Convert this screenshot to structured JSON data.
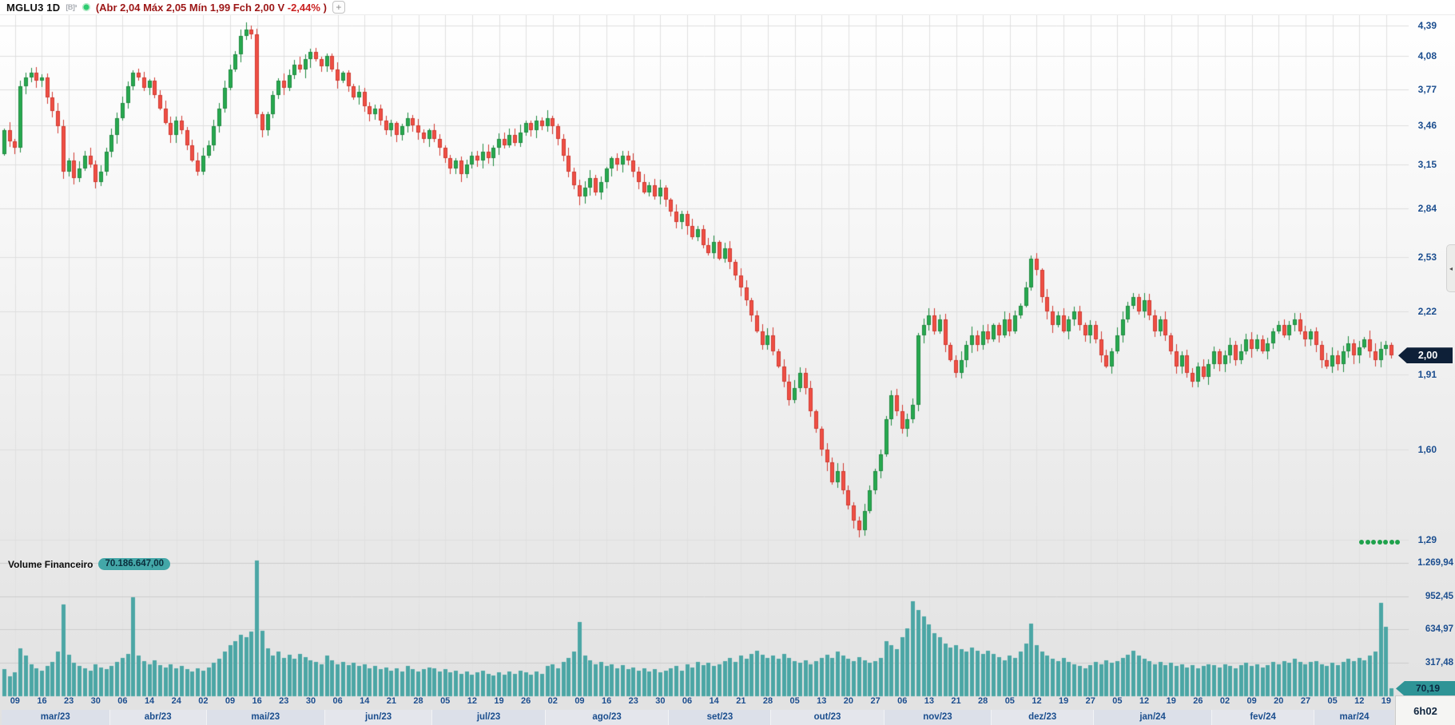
{
  "header": {
    "symbol_timeframe": "MGLU3 1D",
    "symbol": "MGLU3",
    "timeframe": "1D",
    "icons": {
      "exchange": "[B]³",
      "status": "green-connection-dot",
      "add": "+",
      "panel_arrow": "◂"
    },
    "ohlc": {
      "prefix": "(Abr 2,04 Máx 2,05 Mín 1,99 Fch 2,00 V",
      "variation": "-2,44%",
      "suffix": ")"
    }
  },
  "price_axis": {
    "ticks": [
      "4,39",
      "4,08",
      "3,77",
      "3,46",
      "3,15",
      "2,84",
      "2,53",
      "2,22",
      "1,91",
      "1,60",
      "1,29"
    ],
    "tick_values": [
      4.39,
      4.08,
      3.77,
      3.46,
      3.15,
      2.84,
      2.53,
      2.22,
      1.91,
      1.6,
      1.29
    ],
    "last_price_label": "2,00",
    "last_price_value": 2.0,
    "scale": "logarithmic",
    "dots_count": 7
  },
  "volume_pane": {
    "label": "Volume Financeiro",
    "value": "70.186.647,00",
    "ticks": [
      "1.269,94",
      "952,45",
      "634,97",
      "317,48"
    ],
    "tick_values": [
      1269.94,
      952.45,
      634.97,
      317.48
    ],
    "last_label": "70,19",
    "last_value": 70.19,
    "scale_max": 1269.94
  },
  "time_axis": {
    "week_labels": [
      "09",
      "16",
      "23",
      "30",
      "06",
      "14",
      "24",
      "02",
      "09",
      "16",
      "23",
      "30",
      "06",
      "14",
      "21",
      "28",
      "05",
      "12",
      "19",
      "26",
      "02",
      "09",
      "16",
      "23",
      "30",
      "06",
      "14",
      "21",
      "28",
      "05",
      "13",
      "20",
      "27",
      "06",
      "13",
      "21",
      "28",
      "05",
      "12",
      "19",
      "27",
      "05",
      "12",
      "19",
      "26",
      "02",
      "09",
      "20",
      "27",
      "05",
      "12",
      "19"
    ],
    "countdown": "6h02"
  },
  "colors": {
    "up_body": "#27a94f",
    "up_border": "#208a41",
    "down_body": "#ef4f44",
    "down_border": "#d03a30",
    "volume_bar": "#4ba6a5",
    "grid_price": "#dedede",
    "grid_volume": "#cdcdcd",
    "grid_vertical": "#e0e0e0",
    "axis_text": "#1c4e8f",
    "badge_price_bg": "#0e2038",
    "badge_volume_bg": "#2e9496",
    "band_a": "#dce0e9",
    "band_b": "#e4e6ec"
  },
  "chart_data": {
    "type": "candlestick+volume",
    "symbol": "MGLU3",
    "interval": "1D",
    "price_scale": "log",
    "price_range": [
      1.26,
      4.45
    ],
    "open_first": 3.23,
    "months": [
      {
        "label": "mar/23",
        "days": 20
      },
      {
        "label": "abr/23",
        "days": 18
      },
      {
        "label": "mai/23",
        "days": 22
      },
      {
        "label": "jun/23",
        "days": 20
      },
      {
        "label": "jul/23",
        "days": 21
      },
      {
        "label": "ago/23",
        "days": 23
      },
      {
        "label": "set/23",
        "days": 19
      },
      {
        "label": "out/23",
        "days": 21
      },
      {
        "label": "nov/23",
        "days": 20
      },
      {
        "label": "dez/23",
        "days": 19
      },
      {
        "label": "jan/24",
        "days": 22
      },
      {
        "label": "fev/24",
        "days": 19
      },
      {
        "label": "mar/24",
        "days": 15
      }
    ],
    "closes": [
      3.42,
      3.33,
      3.28,
      3.8,
      3.88,
      3.92,
      3.85,
      3.88,
      3.7,
      3.58,
      3.45,
      3.1,
      3.18,
      3.05,
      3.12,
      3.22,
      3.15,
      3.02,
      3.1,
      3.25,
      3.38,
      3.52,
      3.65,
      3.8,
      3.92,
      3.88,
      3.78,
      3.85,
      3.72,
      3.6,
      3.48,
      3.38,
      3.5,
      3.42,
      3.3,
      3.18,
      3.1,
      3.22,
      3.3,
      3.45,
      3.6,
      3.78,
      3.95,
      4.1,
      4.28,
      4.35,
      4.3,
      3.55,
      3.42,
      3.55,
      3.72,
      3.85,
      3.78,
      3.9,
      4.0,
      3.95,
      4.05,
      4.12,
      4.05,
      3.98,
      4.08,
      3.95,
      3.85,
      3.92,
      3.8,
      3.7,
      3.75,
      3.62,
      3.55,
      3.6,
      3.5,
      3.42,
      3.48,
      3.38,
      3.45,
      3.52,
      3.46,
      3.4,
      3.35,
      3.42,
      3.35,
      3.28,
      3.2,
      3.12,
      3.18,
      3.08,
      3.15,
      3.22,
      3.18,
      3.25,
      3.2,
      3.28,
      3.35,
      3.3,
      3.38,
      3.32,
      3.4,
      3.48,
      3.42,
      3.5,
      3.45,
      3.52,
      3.45,
      3.35,
      3.22,
      3.1,
      3.0,
      2.92,
      2.98,
      3.05,
      2.95,
      3.02,
      3.12,
      3.2,
      3.15,
      3.22,
      3.18,
      3.1,
      3.02,
      2.95,
      3.0,
      2.92,
      2.98,
      2.9,
      2.82,
      2.75,
      2.8,
      2.72,
      2.65,
      2.7,
      2.6,
      2.55,
      2.62,
      2.52,
      2.58,
      2.5,
      2.42,
      2.35,
      2.28,
      2.2,
      2.12,
      2.05,
      2.1,
      2.02,
      1.95,
      1.88,
      1.8,
      1.85,
      1.92,
      1.85,
      1.75,
      1.68,
      1.6,
      1.55,
      1.48,
      1.52,
      1.45,
      1.4,
      1.35,
      1.32,
      1.38,
      1.45,
      1.52,
      1.58,
      1.72,
      1.82,
      1.75,
      1.68,
      1.72,
      1.78,
      2.1,
      2.15,
      2.2,
      2.12,
      2.18,
      2.05,
      1.98,
      1.92,
      1.98,
      2.05,
      2.1,
      2.05,
      2.12,
      2.08,
      2.15,
      2.1,
      2.18,
      2.12,
      2.2,
      2.25,
      2.35,
      2.52,
      2.45,
      2.3,
      2.22,
      2.15,
      2.2,
      2.12,
      2.18,
      2.22,
      2.15,
      2.1,
      2.15,
      2.08,
      2.0,
      1.95,
      2.02,
      2.1,
      2.18,
      2.25,
      2.3,
      2.22,
      2.28,
      2.2,
      2.12,
      2.18,
      2.1,
      2.02,
      1.95,
      2.0,
      1.92,
      1.88,
      1.95,
      1.9,
      1.96,
      2.02,
      1.96,
      2.0,
      2.05,
      1.98,
      2.02,
      2.08,
      2.03,
      2.08,
      2.02,
      2.06,
      2.12,
      2.15,
      2.1,
      2.15,
      2.18,
      2.12,
      2.08,
      2.12,
      2.05,
      1.98,
      1.95,
      2.0,
      1.96,
      2.02,
      2.06,
      2.0,
      2.04,
      2.08,
      2.02,
      1.98,
      2.03,
      2.05,
      2.0
    ],
    "volumes_millions": [
      250,
      180,
      220,
      450,
      380,
      300,
      260,
      240,
      280,
      320,
      420,
      870,
      390,
      310,
      280,
      260,
      240,
      300,
      270,
      250,
      280,
      320,
      360,
      400,
      940,
      380,
      330,
      300,
      340,
      290,
      270,
      300,
      260,
      280,
      250,
      230,
      260,
      240,
      270,
      310,
      350,
      420,
      480,
      520,
      580,
      560,
      610,
      1290,
      620,
      450,
      380,
      420,
      360,
      390,
      350,
      400,
      370,
      340,
      320,
      300,
      380,
      340,
      300,
      320,
      290,
      310,
      280,
      300,
      260,
      280,
      250,
      270,
      240,
      260,
      230,
      280,
      250,
      230,
      250,
      270,
      260,
      230,
      250,
      220,
      240,
      210,
      230,
      200,
      220,
      240,
      210,
      190,
      220,
      200,
      230,
      210,
      240,
      220,
      200,
      230,
      210,
      280,
      300,
      260,
      320,
      360,
      420,
      700,
      380,
      340,
      300,
      320,
      280,
      300,
      260,
      290,
      250,
      270,
      240,
      260,
      230,
      250,
      220,
      240,
      260,
      280,
      240,
      300,
      270,
      320,
      290,
      310,
      280,
      300,
      330,
      360,
      320,
      380,
      350,
      400,
      430,
      390,
      360,
      380,
      350,
      400,
      360,
      330,
      310,
      340,
      300,
      330,
      360,
      390,
      360,
      420,
      380,
      350,
      330,
      370,
      340,
      310,
      330,
      360,
      520,
      480,
      440,
      560,
      640,
      900,
      820,
      760,
      680,
      600,
      560,
      500,
      460,
      480,
      440,
      420,
      460,
      430,
      400,
      430,
      400,
      370,
      340,
      380,
      360,
      420,
      500,
      690,
      480,
      420,
      380,
      350,
      330,
      360,
      320,
      300,
      280,
      260,
      290,
      320,
      300,
      340,
      310,
      330,
      360,
      390,
      430,
      380,
      350,
      330,
      300,
      320,
      290,
      310,
      280,
      300,
      270,
      290,
      260,
      280,
      300,
      290,
      270,
      300,
      280,
      260,
      290,
      310,
      280,
      300,
      270,
      290,
      320,
      300,
      330,
      310,
      350,
      320,
      300,
      320,
      330,
      300,
      280,
      310,
      290,
      320,
      350,
      330,
      360,
      340,
      380,
      420,
      890,
      660,
      70.19
    ]
  }
}
